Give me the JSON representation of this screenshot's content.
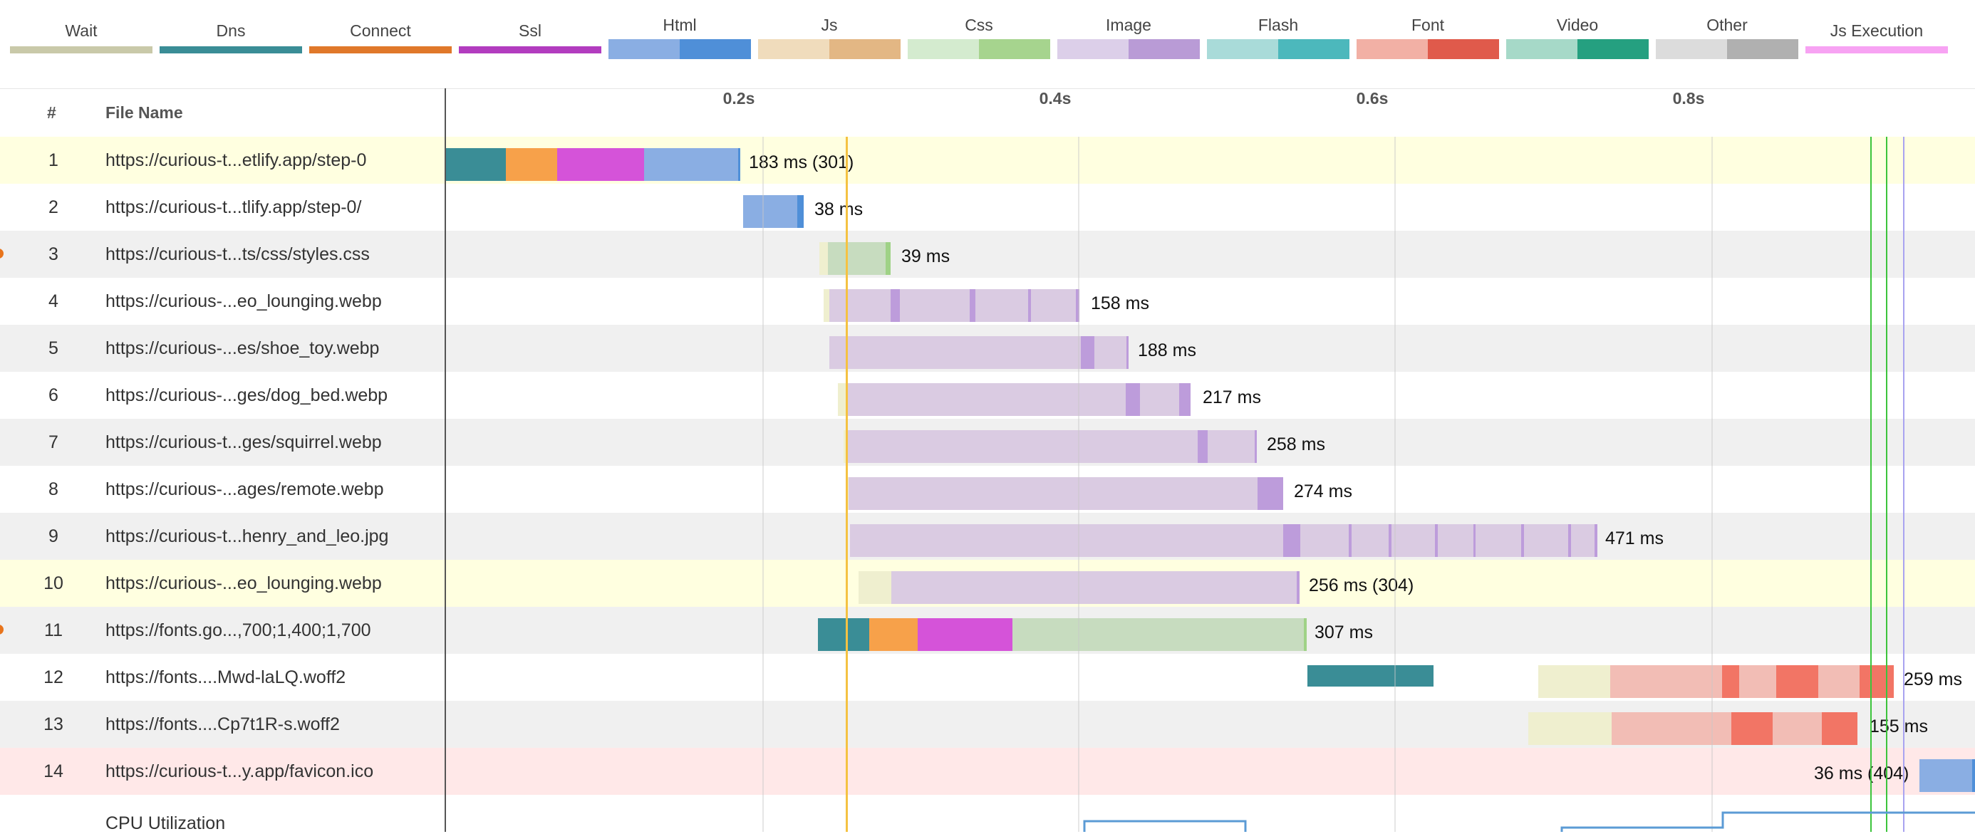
{
  "legend": [
    {
      "label": "Wait",
      "colors": [
        "#c9c9a9"
      ],
      "split": false
    },
    {
      "label": "Dns",
      "colors": [
        "#3a8d96"
      ],
      "split": false
    },
    {
      "label": "Connect",
      "colors": [
        "#e0782a"
      ],
      "split": false
    },
    {
      "label": "Ssl",
      "colors": [
        "#b23cbf"
      ],
      "split": false
    },
    {
      "label": "Html",
      "colors": [
        "#8aaee3",
        "#4f8fd8"
      ],
      "split": true
    },
    {
      "label": "Js",
      "colors": [
        "#f0dcbc",
        "#e3b784"
      ],
      "split": true
    },
    {
      "label": "Css",
      "colors": [
        "#d4ebcf",
        "#a6d48e"
      ],
      "split": true
    },
    {
      "label": "Image",
      "colors": [
        "#dccfe9",
        "#b99bd6"
      ],
      "split": true
    },
    {
      "label": "Flash",
      "colors": [
        "#a9dbd9",
        "#4cb8bc"
      ],
      "split": true
    },
    {
      "label": "Font",
      "colors": [
        "#f2b0a5",
        "#e05a4b"
      ],
      "split": true
    },
    {
      "label": "Video",
      "colors": [
        "#a6d9c8",
        "#25a080"
      ],
      "split": true
    },
    {
      "label": "Other",
      "colors": [
        "#dcdcdc",
        "#b0b0b0"
      ],
      "split": true
    },
    {
      "label": "Js Execution",
      "colors": [
        "#f7a3f3"
      ],
      "split": false
    }
  ],
  "header": {
    "number_label": "#",
    "file_label": "File Name"
  },
  "ticks": [
    "0.2s",
    "0.4s",
    "0.6s",
    "0.8s"
  ],
  "rows": [
    {
      "num": "1",
      "name": "https://curious-t...etlify.app/step-0",
      "time": "183 ms (301)",
      "bg": "#ffffe0",
      "dot": false
    },
    {
      "num": "2",
      "name": "https://curious-t...tlify.app/step-0/",
      "time": "38 ms",
      "bg": "#ffffff",
      "dot": false
    },
    {
      "num": "3",
      "name": "https://curious-t...ts/css/styles.css",
      "time": "39 ms",
      "bg": "#f0f0f0",
      "dot": true
    },
    {
      "num": "4",
      "name": "https://curious-...eo_lounging.webp",
      "time": "158 ms",
      "bg": "#ffffff",
      "dot": false
    },
    {
      "num": "5",
      "name": "https://curious-...es/shoe_toy.webp",
      "time": "188 ms",
      "bg": "#f0f0f0",
      "dot": false
    },
    {
      "num": "6",
      "name": "https://curious-...ges/dog_bed.webp",
      "time": "217 ms",
      "bg": "#ffffff",
      "dot": false
    },
    {
      "num": "7",
      "name": "https://curious-t...ges/squirrel.webp",
      "time": "258 ms",
      "bg": "#f0f0f0",
      "dot": false
    },
    {
      "num": "8",
      "name": "https://curious-...ages/remote.webp",
      "time": "274 ms",
      "bg": "#ffffff",
      "dot": false
    },
    {
      "num": "9",
      "name": "https://curious-t...henry_and_leo.jpg",
      "time": "471 ms",
      "bg": "#f0f0f0",
      "dot": false
    },
    {
      "num": "10",
      "name": "https://curious-...eo_lounging.webp",
      "time": "256 ms (304)",
      "bg": "#ffffe0",
      "dot": false
    },
    {
      "num": "11",
      "name": "https://fonts.go...,700;1,400;1,700",
      "time": "307 ms",
      "bg": "#f0f0f0",
      "dot": true
    },
    {
      "num": "12",
      "name": "https://fonts....Mwd-laLQ.woff2",
      "time": "259 ms",
      "bg": "#ffffff",
      "dot": false
    },
    {
      "num": "13",
      "name": "https://fonts....Cp7t1R-s.woff2",
      "time": "155 ms",
      "bg": "#f0f0f0",
      "dot": false
    },
    {
      "num": "14",
      "name": "https://curious-t...y.app/favicon.ico",
      "time": "36 ms (404)",
      "bg": "#ffe8e8",
      "dot": false
    }
  ],
  "cpu": {
    "label": "CPU Utilization",
    "color": "#5b9bd5"
  }
}
